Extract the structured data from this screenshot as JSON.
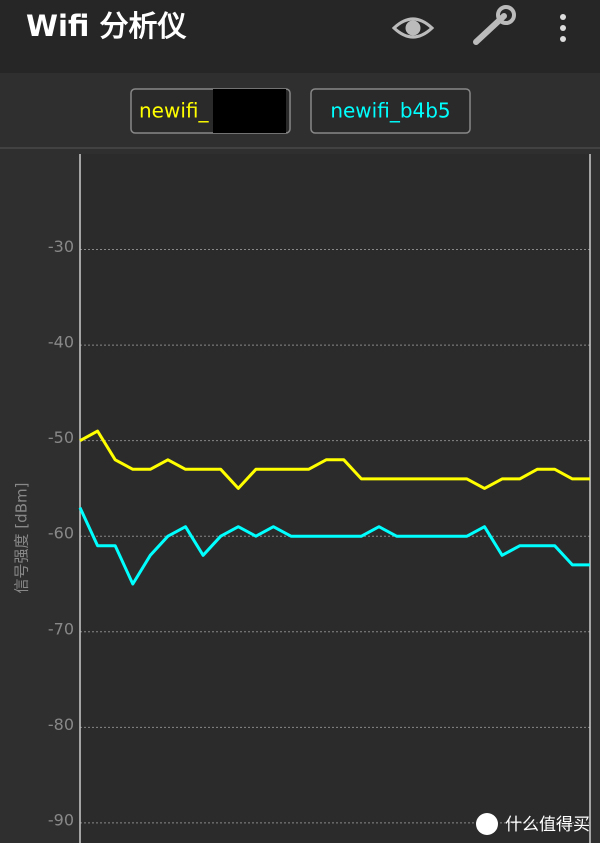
{
  "app": {
    "title": "Wifi 分析仪"
  },
  "watermark": "什么值得买",
  "chart_data": {
    "type": "line",
    "y_label": "信号强度 [dBm]",
    "categories": [
      null,
      null,
      null,
      null,
      null,
      null,
      null,
      null,
      null,
      null,
      null,
      null,
      null,
      null,
      null,
      null,
      null,
      null,
      null,
      null,
      null,
      null,
      null,
      null,
      null,
      null,
      null,
      null,
      null,
      null
    ],
    "series": [
      {
        "name": "newifi_",
        "color": "#ffff00",
        "values": [
          -50,
          -49,
          -52,
          -53,
          -53,
          -52,
          -53,
          -53,
          -53,
          -55,
          -53,
          -53,
          -53,
          -53,
          -52,
          -52,
          -54,
          -54,
          -54,
          -54,
          -54,
          -54,
          -54,
          -55,
          -54,
          -54,
          -53,
          -53,
          -54,
          -54
        ]
      },
      {
        "name": "newifi_b4b5",
        "color": "#00ffff",
        "values": [
          -57,
          -61,
          -61,
          -65,
          -62,
          -60,
          -59,
          -62,
          -60,
          -59,
          -60,
          -59,
          -60,
          -60,
          -60,
          -60,
          -60,
          -59,
          -60,
          -60,
          -60,
          -60,
          -60,
          -59,
          -62,
          -61,
          -61,
          -61,
          -63,
          -63
        ]
      }
    ],
    "ylim": [
      -92,
      -20
    ],
    "yticks": [
      -30,
      -40,
      -50,
      -60,
      -70,
      -80,
      -90
    ],
    "grid": true
  }
}
